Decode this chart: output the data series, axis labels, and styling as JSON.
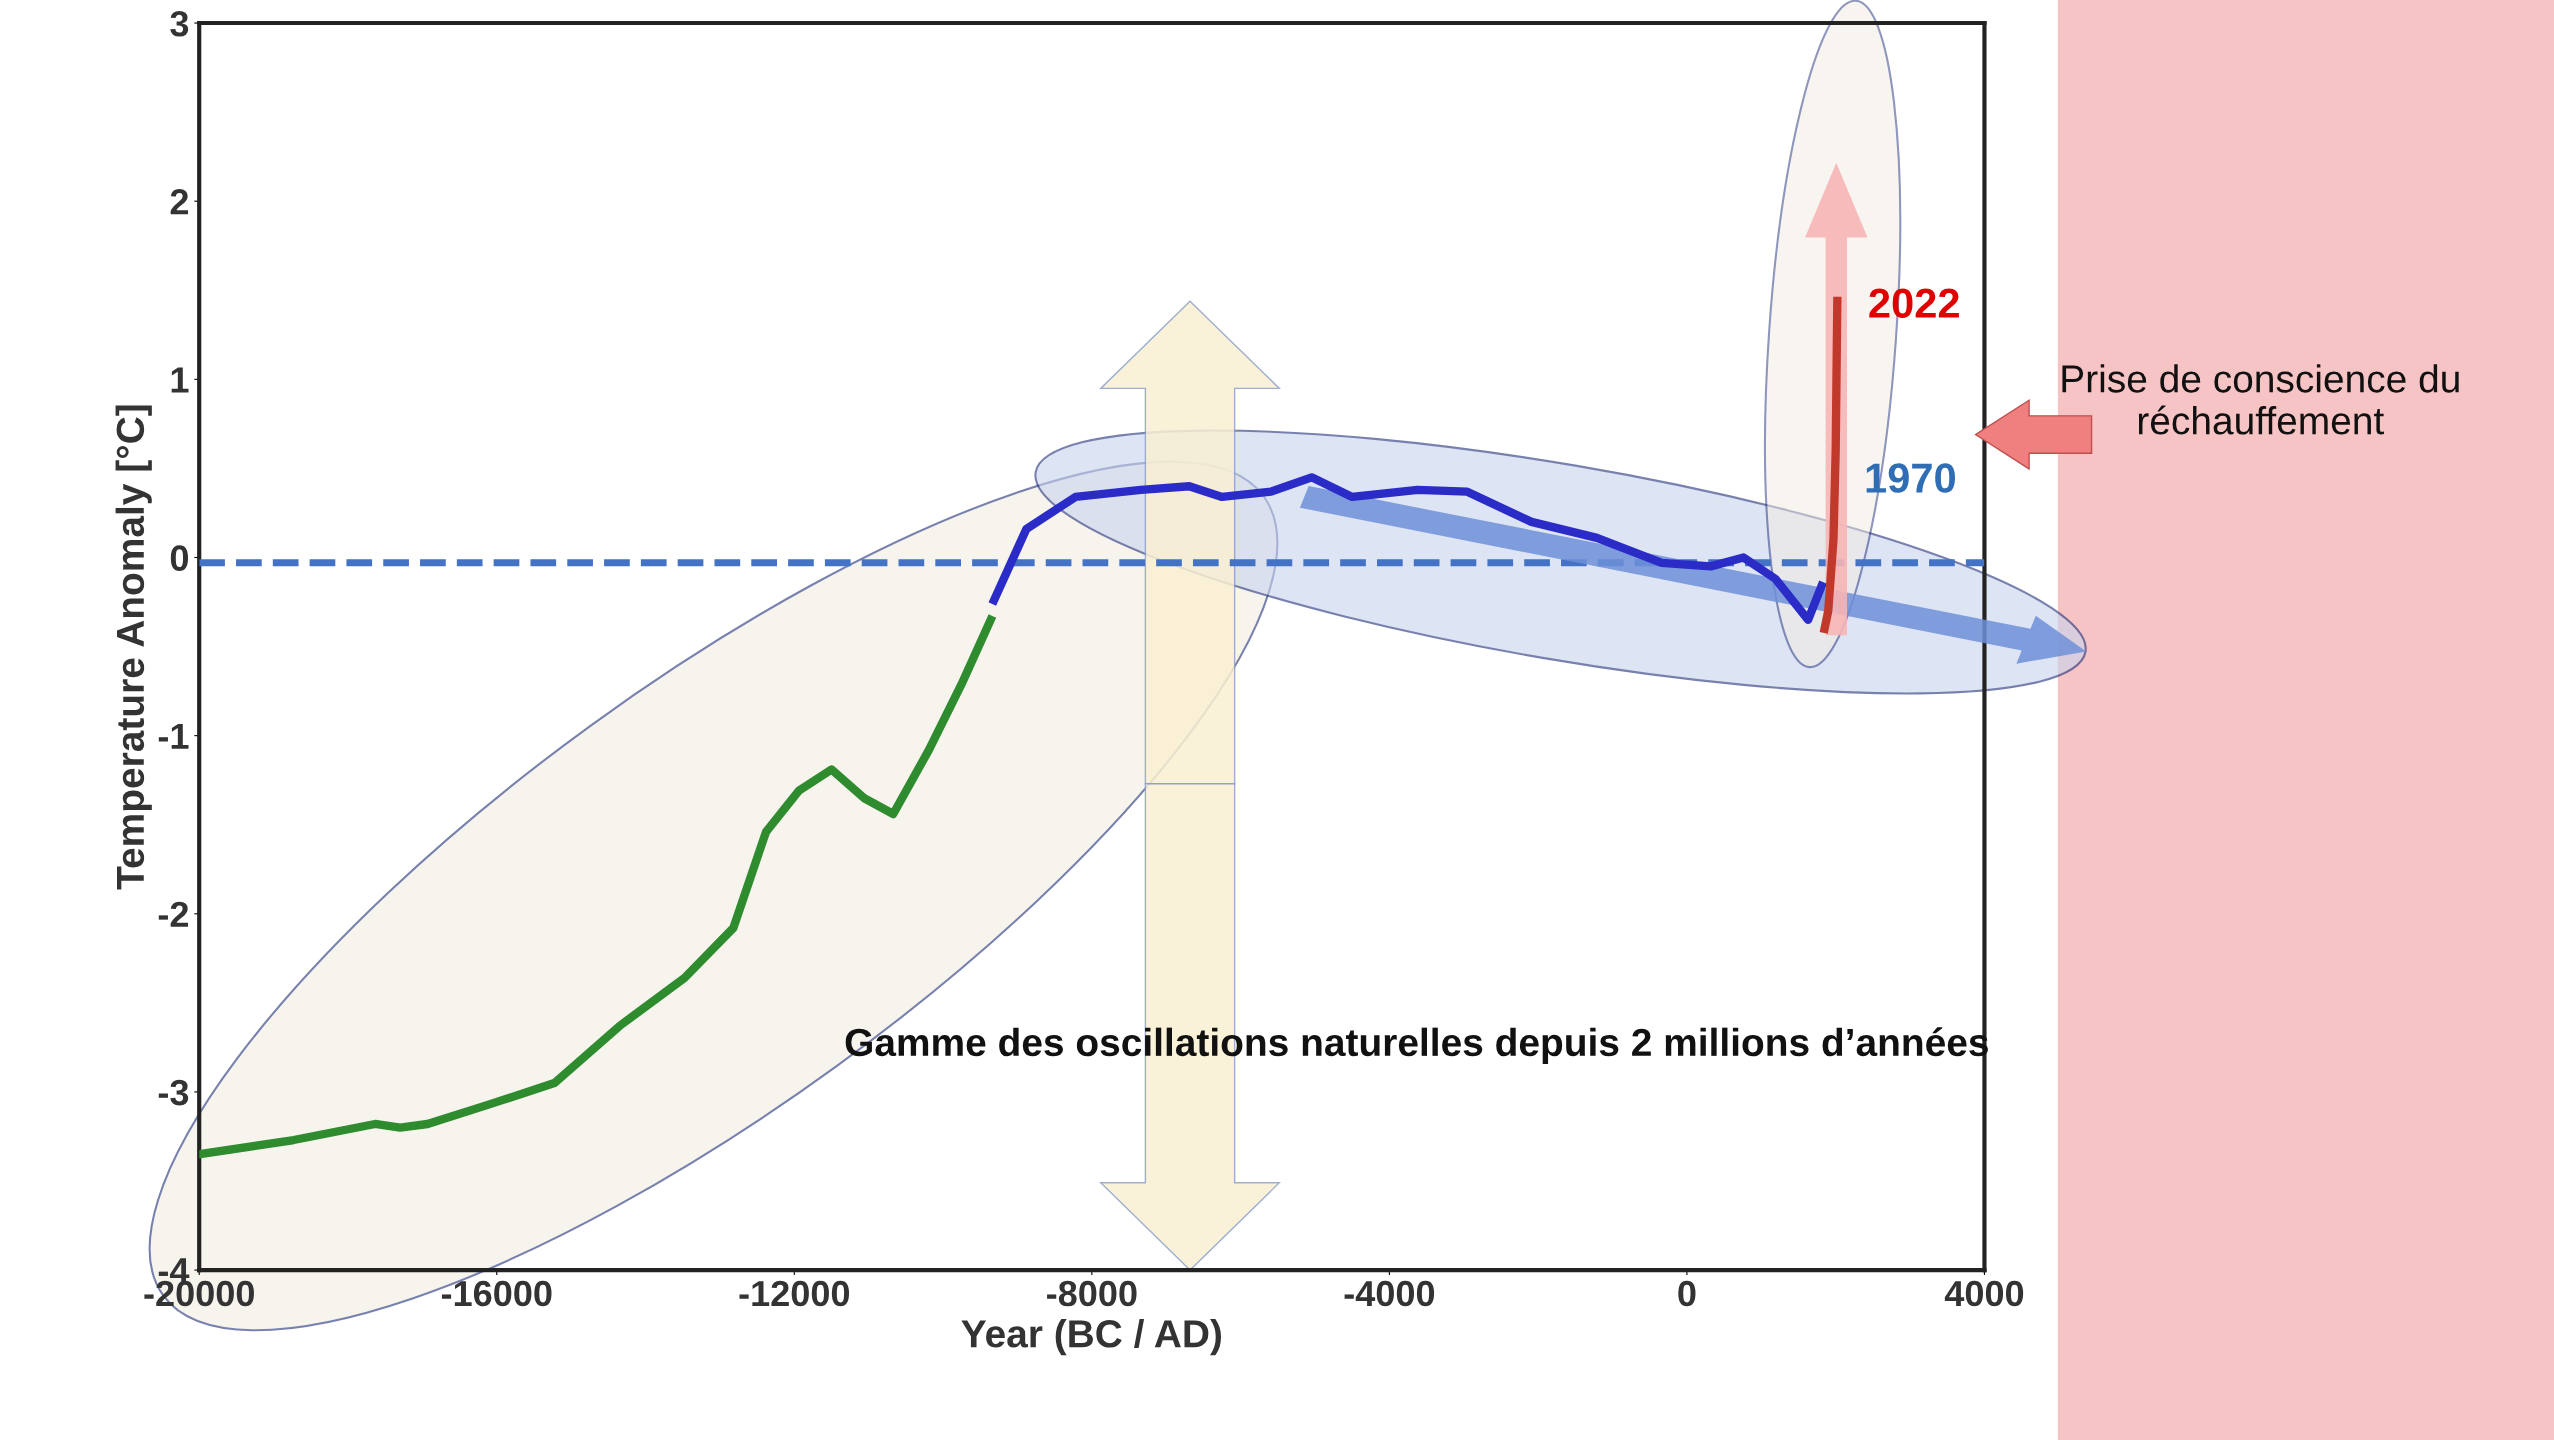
{
  "chart_data": {
    "type": "line",
    "xlabel": "Year (BC / AD)",
    "ylabel": "Temperature Anomaly [°C]",
    "xlim": [
      -20000,
      4000
    ],
    "xticks": [
      -20000,
      -16000,
      -12000,
      -8000,
      -4000,
      0,
      4000
    ],
    "ylim": [
      -4,
      3
    ],
    "yticks": [
      -4,
      -3,
      -2,
      -1,
      0,
      1,
      2,
      3
    ],
    "grid": false,
    "legend": false,
    "marker": "none",
    "line_style": "solid",
    "series": [
      {
        "color": "#2e8b2e",
        "x": [
          -20000,
          -18730,
          -17635,
          -17300,
          -16930,
          -16100,
          -15225,
          -14350,
          -13475,
          -12820,
          -12380,
          -11940,
          -11500,
          -11065,
          -10670,
          -10190,
          -9750,
          -9360
        ],
        "values": [
          -3.35,
          -3.27,
          -3.18,
          -3.2,
          -3.18,
          -3.07,
          -2.95,
          -2.63,
          -2.36,
          -2.08,
          -1.54,
          -1.31,
          -1.19,
          -1.35,
          -1.44,
          -1.08,
          -0.71,
          -0.35
        ]
      },
      {
        "color": "#2b2bc8",
        "x": [
          -9315,
          -8880,
          -8220,
          -7340,
          -6690,
          -6250,
          -5590,
          -5045,
          -4500,
          -3620,
          -2960,
          -2090,
          -1210,
          -340,
          320,
          760,
          1190,
          1630,
          1810
        ],
        "values": [
          -0.24,
          0.16,
          0.34,
          0.38,
          0.4,
          0.34,
          0.37,
          0.45,
          0.34,
          0.38,
          0.37,
          0.2,
          0.11,
          -0.03,
          -0.05,
          0.0,
          -0.12,
          -0.35,
          -0.16
        ]
      },
      {
        "color": "#c0392b",
        "x": [
          1850,
          1900,
          1970,
          2000,
          2022
        ],
        "values": [
          -0.4,
          -0.3,
          0.1,
          0.6,
          1.44
        ]
      }
    ],
    "ref_lines": [
      {
        "axis": "y",
        "value": -0.03,
        "color": "#4472c4",
        "line_style": "dashed"
      }
    ],
    "annotations": [
      {
        "text": "2022",
        "x": 2022,
        "y": 1.44
      },
      {
        "text": "1970",
        "x": 1970,
        "y": 0.1
      },
      "Prise de conscience du réchauffement",
      "Gamme des oscillations naturelles depuis 2 millions d’années"
    ]
  }
}
